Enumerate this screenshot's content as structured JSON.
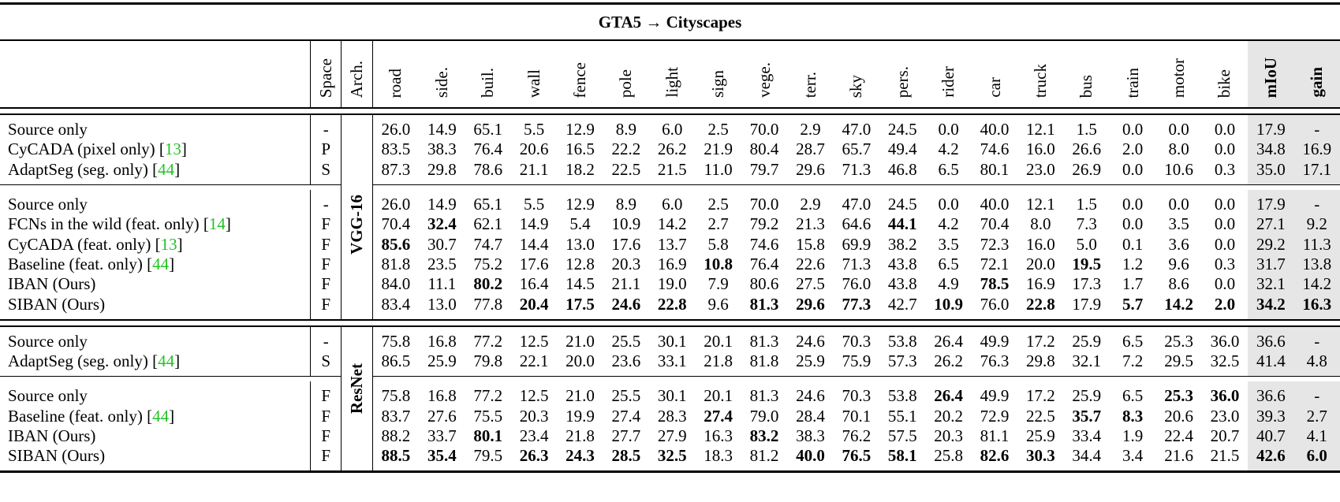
{
  "table": {
    "title": "GTA5 → Cityscapes",
    "headers": {
      "method": "",
      "space": "Space",
      "arch": "Arch.",
      "classes": [
        "road",
        "side.",
        "buil.",
        "wall",
        "fence",
        "pole",
        "light",
        "sign",
        "vege.",
        "terr.",
        "sky",
        "pers.",
        "rider",
        "car",
        "truck",
        "bus",
        "train",
        "motor",
        "bike"
      ],
      "miou": "mIoU",
      "gain": "gain"
    },
    "arch_labels": {
      "vgg": "VGG-16",
      "resnet": "ResNet"
    },
    "groups": [
      {
        "arch": "VGG-16",
        "rows": [
          {
            "method": "Source only",
            "cite": "",
            "space": "-",
            "values": [
              "26.0",
              "14.9",
              "65.1",
              "5.5",
              "12.9",
              "8.9",
              "6.0",
              "2.5",
              "70.0",
              "2.9",
              "47.0",
              "24.5",
              "0.0",
              "40.0",
              "12.1",
              "1.5",
              "0.0",
              "0.0",
              "0.0"
            ],
            "bold": [],
            "miou": "17.9",
            "gain": "-",
            "bold_miou": false,
            "bold_gain": false
          },
          {
            "method": "CyCADA (pixel only) [",
            "cite": "13",
            "space": "P",
            "values": [
              "83.5",
              "38.3",
              "76.4",
              "20.6",
              "16.5",
              "22.2",
              "26.2",
              "21.9",
              "80.4",
              "28.7",
              "65.7",
              "49.4",
              "4.2",
              "74.6",
              "16.0",
              "26.6",
              "2.0",
              "8.0",
              "0.0"
            ],
            "bold": [],
            "miou": "34.8",
            "gain": "16.9",
            "bold_miou": false,
            "bold_gain": false
          },
          {
            "method": "AdaptSeg (seg. only) [",
            "cite": "44",
            "space": "S",
            "values": [
              "87.3",
              "29.8",
              "78.6",
              "21.1",
              "18.2",
              "22.5",
              "21.5",
              "11.0",
              "79.7",
              "29.6",
              "71.3",
              "46.8",
              "6.5",
              "80.1",
              "23.0",
              "26.9",
              "0.0",
              "10.6",
              "0.3"
            ],
            "bold": [],
            "miou": "35.0",
            "gain": "17.1",
            "bold_miou": false,
            "bold_gain": false
          }
        ]
      },
      {
        "arch": "VGG-16",
        "rows": [
          {
            "method": "Source only",
            "cite": "",
            "space": "-",
            "values": [
              "26.0",
              "14.9",
              "65.1",
              "5.5",
              "12.9",
              "8.9",
              "6.0",
              "2.5",
              "70.0",
              "2.9",
              "47.0",
              "24.5",
              "0.0",
              "40.0",
              "12.1",
              "1.5",
              "0.0",
              "0.0",
              "0.0"
            ],
            "bold": [],
            "miou": "17.9",
            "gain": "-",
            "bold_miou": false,
            "bold_gain": false
          },
          {
            "method": "FCNs in the wild (feat. only) [",
            "cite": "14",
            "space": "F",
            "values": [
              "70.4",
              "32.4",
              "62.1",
              "14.9",
              "5.4",
              "10.9",
              "14.2",
              "2.7",
              "79.2",
              "21.3",
              "64.6",
              "44.1",
              "4.2",
              "70.4",
              "8.0",
              "7.3",
              "0.0",
              "3.5",
              "0.0"
            ],
            "bold": [
              1,
              11
            ],
            "miou": "27.1",
            "gain": "9.2",
            "bold_miou": false,
            "bold_gain": false
          },
          {
            "method": "CyCADA (feat. only) [",
            "cite": "13",
            "space": "F",
            "values": [
              "85.6",
              "30.7",
              "74.7",
              "14.4",
              "13.0",
              "17.6",
              "13.7",
              "5.8",
              "74.6",
              "15.8",
              "69.9",
              "38.2",
              "3.5",
              "72.3",
              "16.0",
              "5.0",
              "0.1",
              "3.6",
              "0.0"
            ],
            "bold": [
              0
            ],
            "miou": "29.2",
            "gain": "11.3",
            "bold_miou": false,
            "bold_gain": false
          },
          {
            "method": "Baseline (feat. only) [",
            "cite": "44",
            "space": "F",
            "values": [
              "81.8",
              "23.5",
              "75.2",
              "17.6",
              "12.8",
              "20.3",
              "16.9",
              "10.8",
              "76.4",
              "22.6",
              "71.3",
              "43.8",
              "6.5",
              "72.1",
              "20.0",
              "19.5",
              "1.2",
              "9.6",
              "0.3"
            ],
            "bold": [
              7,
              15
            ],
            "miou": "31.7",
            "gain": "13.8",
            "bold_miou": false,
            "bold_gain": false
          },
          {
            "method": "IBAN (Ours)",
            "cite": "",
            "space": "F",
            "values": [
              "84.0",
              "11.1",
              "80.2",
              "16.4",
              "14.5",
              "21.1",
              "19.0",
              "7.9",
              "80.6",
              "27.5",
              "76.0",
              "43.8",
              "4.9",
              "78.5",
              "16.9",
              "17.3",
              "1.7",
              "8.6",
              "0.0"
            ],
            "bold": [
              2,
              13
            ],
            "miou": "32.1",
            "gain": "14.2",
            "bold_miou": false,
            "bold_gain": false
          },
          {
            "method": "SIBAN (Ours)",
            "cite": "",
            "space": "F",
            "values": [
              "83.4",
              "13.0",
              "77.8",
              "20.4",
              "17.5",
              "24.6",
              "22.8",
              "9.6",
              "81.3",
              "29.6",
              "77.3",
              "42.7",
              "10.9",
              "76.0",
              "22.8",
              "17.9",
              "5.7",
              "14.2",
              "2.0"
            ],
            "bold": [
              3,
              4,
              5,
              6,
              8,
              9,
              10,
              12,
              14,
              16,
              17,
              18
            ],
            "miou": "34.2",
            "gain": "16.3",
            "bold_miou": true,
            "bold_gain": true
          }
        ]
      },
      {
        "arch": "ResNet",
        "rows": [
          {
            "method": "Source only",
            "cite": "",
            "space": "-",
            "values": [
              "75.8",
              "16.8",
              "77.2",
              "12.5",
              "21.0",
              "25.5",
              "30.1",
              "20.1",
              "81.3",
              "24.6",
              "70.3",
              "53.8",
              "26.4",
              "49.9",
              "17.2",
              "25.9",
              "6.5",
              "25.3",
              "36.0"
            ],
            "bold": [],
            "miou": "36.6",
            "gain": "-",
            "bold_miou": false,
            "bold_gain": false
          },
          {
            "method": "AdaptSeg (seg. only) [",
            "cite": "44",
            "space": "S",
            "values": [
              "86.5",
              "25.9",
              "79.8",
              "22.1",
              "20.0",
              "23.6",
              "33.1",
              "21.8",
              "81.8",
              "25.9",
              "75.9",
              "57.3",
              "26.2",
              "76.3",
              "29.8",
              "32.1",
              "7.2",
              "29.5",
              "32.5"
            ],
            "bold": [],
            "miou": "41.4",
            "gain": "4.8",
            "bold_miou": false,
            "bold_gain": false
          }
        ]
      },
      {
        "arch": "ResNet",
        "rows": [
          {
            "method": "Source only",
            "cite": "",
            "space": "F",
            "values": [
              "75.8",
              "16.8",
              "77.2",
              "12.5",
              "21.0",
              "25.5",
              "30.1",
              "20.1",
              "81.3",
              "24.6",
              "70.3",
              "53.8",
              "26.4",
              "49.9",
              "17.2",
              "25.9",
              "6.5",
              "25.3",
              "36.0"
            ],
            "bold": [
              12,
              17,
              18
            ],
            "miou": "36.6",
            "gain": "-",
            "bold_miou": false,
            "bold_gain": false
          },
          {
            "method": "Baseline (feat. only) [",
            "cite": "44",
            "space": "F",
            "values": [
              "83.7",
              "27.6",
              "75.5",
              "20.3",
              "19.9",
              "27.4",
              "28.3",
              "27.4",
              "79.0",
              "28.4",
              "70.1",
              "55.1",
              "20.2",
              "72.9",
              "22.5",
              "35.7",
              "8.3",
              "20.6",
              "23.0"
            ],
            "bold": [
              7,
              15,
              16
            ],
            "miou": "39.3",
            "gain": "2.7",
            "bold_miou": false,
            "bold_gain": false
          },
          {
            "method": "IBAN (Ours)",
            "cite": "",
            "space": "F",
            "values": [
              "88.2",
              "33.7",
              "80.1",
              "23.4",
              "21.8",
              "27.7",
              "27.9",
              "16.3",
              "83.2",
              "38.3",
              "76.2",
              "57.5",
              "20.3",
              "81.1",
              "25.9",
              "33.4",
              "1.9",
              "22.4",
              "20.7"
            ],
            "bold": [
              2,
              8
            ],
            "miou": "40.7",
            "gain": "4.1",
            "bold_miou": false,
            "bold_gain": false
          },
          {
            "method": "SIBAN (Ours)",
            "cite": "",
            "space": "F",
            "values": [
              "88.5",
              "35.4",
              "79.5",
              "26.3",
              "24.3",
              "28.5",
              "32.5",
              "18.3",
              "81.2",
              "40.0",
              "76.5",
              "58.1",
              "25.8",
              "82.6",
              "30.3",
              "34.4",
              "3.4",
              "21.6",
              "21.5"
            ],
            "bold": [
              0,
              1,
              3,
              4,
              5,
              6,
              9,
              10,
              11,
              13,
              14
            ],
            "miou": "42.6",
            "gain": "6.0",
            "bold_miou": true,
            "bold_gain": true
          }
        ]
      }
    ],
    "colors": {
      "citation": "#22c422",
      "shade": "#e6e6e6",
      "rule": "#000000"
    }
  }
}
